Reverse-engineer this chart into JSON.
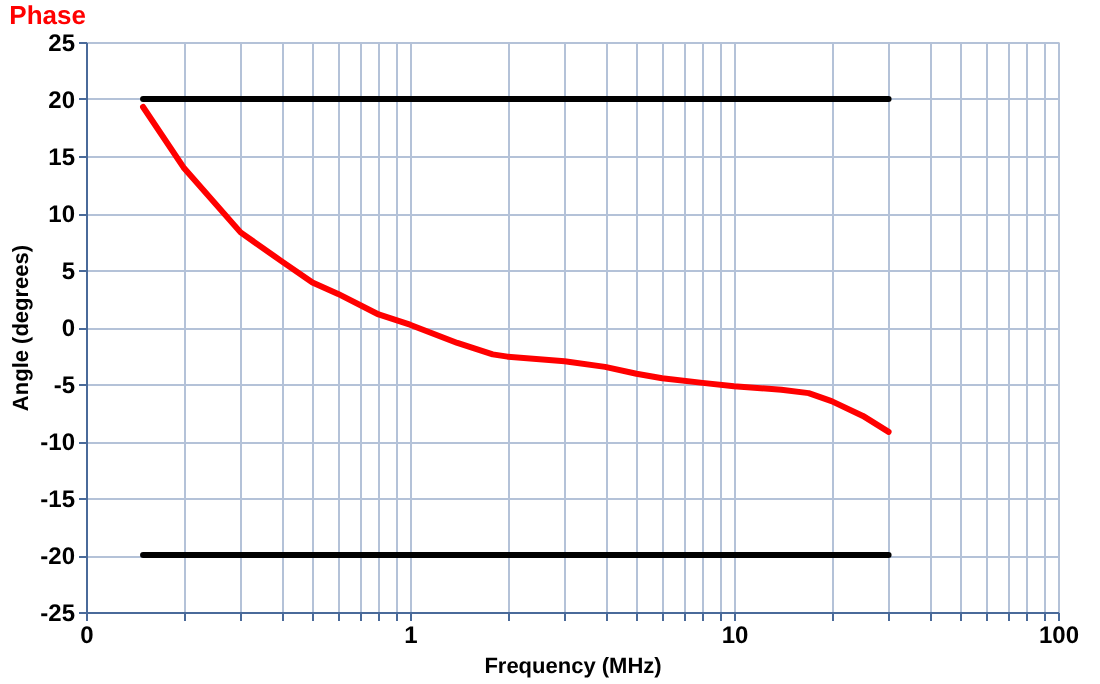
{
  "chart_data": {
    "type": "line",
    "title": "Phase",
    "xlabel": "Frequency (MHz)",
    "ylabel": "Angle (degrees)",
    "log": "x",
    "xlim": [
      0.1,
      100
    ],
    "ylim": [
      -25,
      25
    ],
    "xticks": [
      {
        "value": 0.1,
        "label": "0"
      },
      {
        "value": 0.2,
        "label": null
      },
      {
        "value": 0.3,
        "label": null
      },
      {
        "value": 0.4,
        "label": null
      },
      {
        "value": 0.5,
        "label": null
      },
      {
        "value": 0.6,
        "label": null
      },
      {
        "value": 0.7,
        "label": null
      },
      {
        "value": 0.8,
        "label": null
      },
      {
        "value": 0.9,
        "label": null
      },
      1,
      {
        "value": 2,
        "label": null
      },
      {
        "value": 3,
        "label": null
      },
      {
        "value": 4,
        "label": null
      },
      {
        "value": 5,
        "label": null
      },
      {
        "value": 6,
        "label": null
      },
      {
        "value": 7,
        "label": null
      },
      {
        "value": 8,
        "label": null
      },
      {
        "value": 9,
        "label": null
      },
      10,
      {
        "value": 20,
        "label": null
      },
      {
        "value": 30,
        "label": null
      },
      {
        "value": 40,
        "label": null
      },
      {
        "value": 50,
        "label": null
      },
      {
        "value": 60,
        "label": null
      },
      {
        "value": 70,
        "label": null
      },
      {
        "value": 80,
        "label": null
      },
      {
        "value": 90,
        "label": null
      },
      100
    ],
    "yticks": [
      -25,
      -20,
      -15,
      -10,
      -5,
      0,
      5,
      10,
      15,
      20,
      25
    ],
    "grid": true,
    "line_style": "solid",
    "marker": "none",
    "series": [
      {
        "color": "#ff0000",
        "x": [
          0.15,
          0.2,
          0.3,
          0.4,
          0.5,
          0.6,
          0.8,
          1,
          1.4,
          1.8,
          2,
          3,
          4,
          5,
          6,
          8,
          10,
          14,
          17,
          20,
          25,
          30
        ],
        "values": [
          19.3,
          14.0,
          8.3,
          5.8,
          3.9,
          2.9,
          1.1,
          0.2,
          -1.4,
          -2.4,
          -2.6,
          -3.0,
          -3.5,
          -4.1,
          -4.5,
          -4.9,
          -5.2,
          -5.5,
          -5.8,
          -6.5,
          -7.8,
          -9.2
        ]
      },
      {
        "color": "#000000",
        "x": [
          0.15,
          30
        ],
        "values": [
          20,
          20
        ]
      },
      {
        "color": "#000000",
        "x": [
          0.15,
          30
        ],
        "values": [
          -20,
          -20
        ]
      }
    ]
  }
}
